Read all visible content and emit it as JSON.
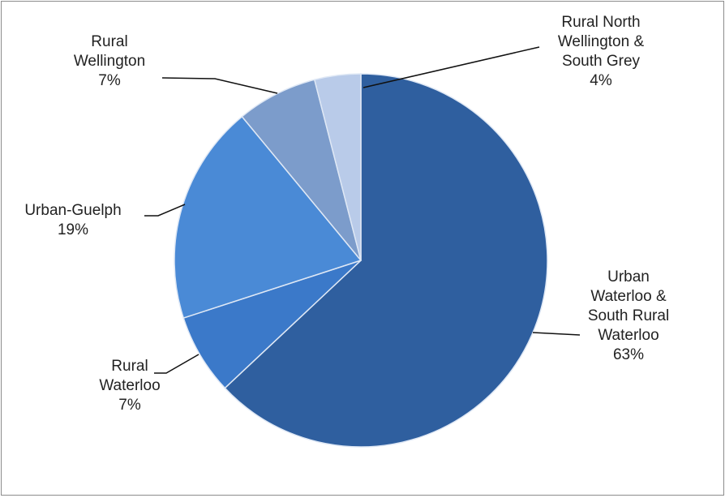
{
  "chart_data": {
    "type": "pie",
    "categories": [
      "Urban Waterloo & South Rural Waterloo",
      "Rural Waterloo",
      "Urban-Guelph",
      "Rural Wellington",
      "Rural North Wellington & South Grey"
    ],
    "values": [
      63,
      7,
      19,
      7,
      4
    ],
    "value_labels": [
      "63%",
      "7%",
      "19%",
      "7%",
      "4%"
    ],
    "colors": [
      "#2f5f9f",
      "#3b79c9",
      "#4a8ad6",
      "#7c9ccb",
      "#b9cbe9"
    ]
  }
}
